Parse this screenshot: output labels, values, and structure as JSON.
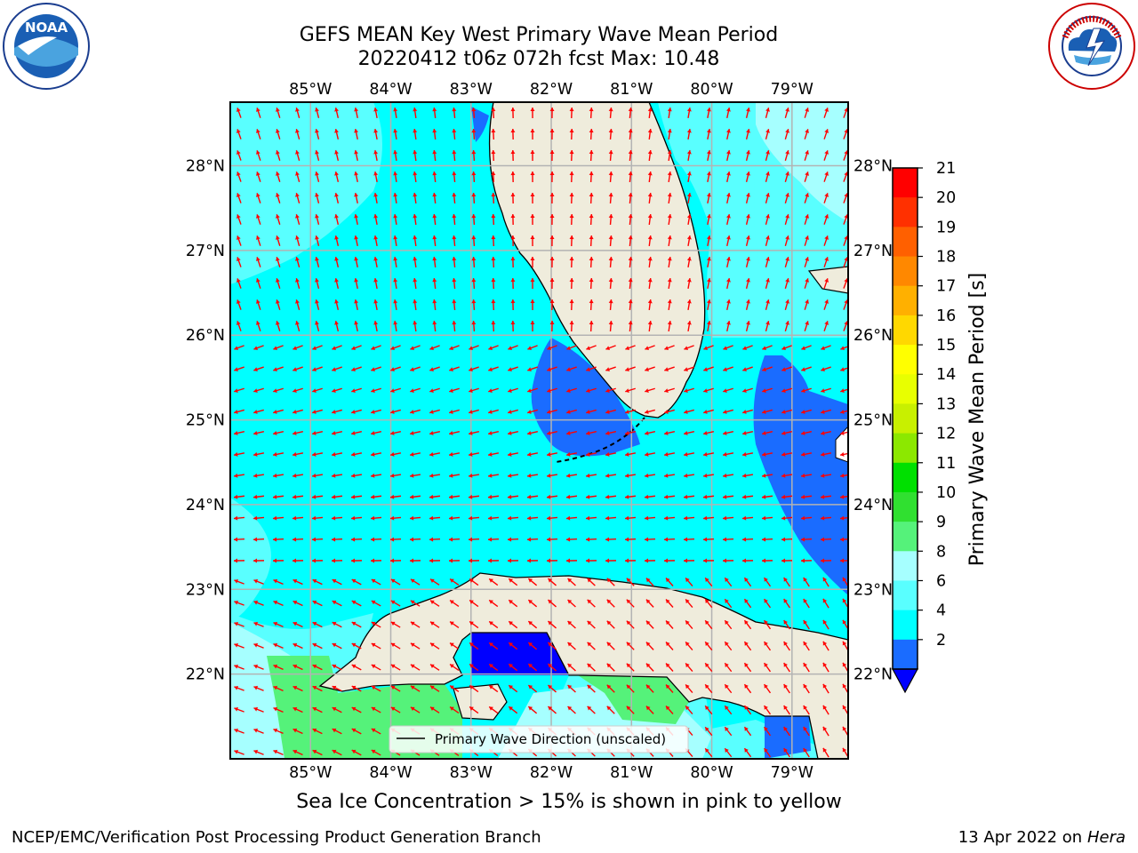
{
  "title": {
    "line1": "GEFS MEAN Key West Primary Wave Mean Period",
    "line2": "20220412 t06z 072h fcst   Max: 10.48"
  },
  "logos": {
    "noaa": {
      "icon": "noaa-logo",
      "text": "NOAA",
      "ring_text": "NATIONAL OCEANIC AND ATMOSPHERIC ADMINISTRATION · U.S. DEPARTMENT OF COMMERCE"
    },
    "nws": {
      "icon": "national-weather-service-logo",
      "ring_text": "NATIONAL WEATHER SERVICE"
    }
  },
  "map": {
    "lon_labels": [
      "85°W",
      "84°W",
      "83°W",
      "82°W",
      "81°W",
      "80°W",
      "79°W"
    ],
    "lon_values": [
      -85,
      -84,
      -83,
      -82,
      -81,
      -80,
      -79
    ],
    "lat_labels": [
      "28°N",
      "27°N",
      "26°N",
      "25°N",
      "24°N",
      "23°N",
      "22°N"
    ],
    "lat_values": [
      28,
      27,
      26,
      25,
      24,
      23,
      22
    ],
    "extent": {
      "lon_min": -86.0,
      "lon_max": -78.3,
      "lat_min": 21.0,
      "lat_max": 28.75
    },
    "legend_label": "Primary Wave Direction (unscaled)",
    "vector_color": "#ff0000",
    "land_color": "#efecdc",
    "grid": true
  },
  "colorbar": {
    "label": "Primary Wave Mean Period [s]",
    "ticks": [
      "21",
      "20",
      "19",
      "18",
      "17",
      "16",
      "15",
      "14",
      "13",
      "12",
      "11",
      "10",
      "9",
      "8",
      "6",
      "4",
      "2"
    ],
    "colors_top_to_bottom": [
      "#ff0000",
      "#ff3000",
      "#ff6000",
      "#ff8800",
      "#ffb000",
      "#ffd800",
      "#ffff00",
      "#e8ff00",
      "#c8f000",
      "#8ce800",
      "#00e000",
      "#30e030",
      "#55f27a",
      "#a6ffff",
      "#59ffff",
      "#00ffff",
      "#1a6cff"
    ],
    "extend_color": "#0000ff"
  },
  "note": "Sea Ice Concentration > 15% is shown in pink to yellow",
  "footer": {
    "left": "NCEP/EMC/Verification Post Processing Product Generation Branch",
    "date": "13 Apr 2022 on ",
    "machine": "Hera"
  }
}
